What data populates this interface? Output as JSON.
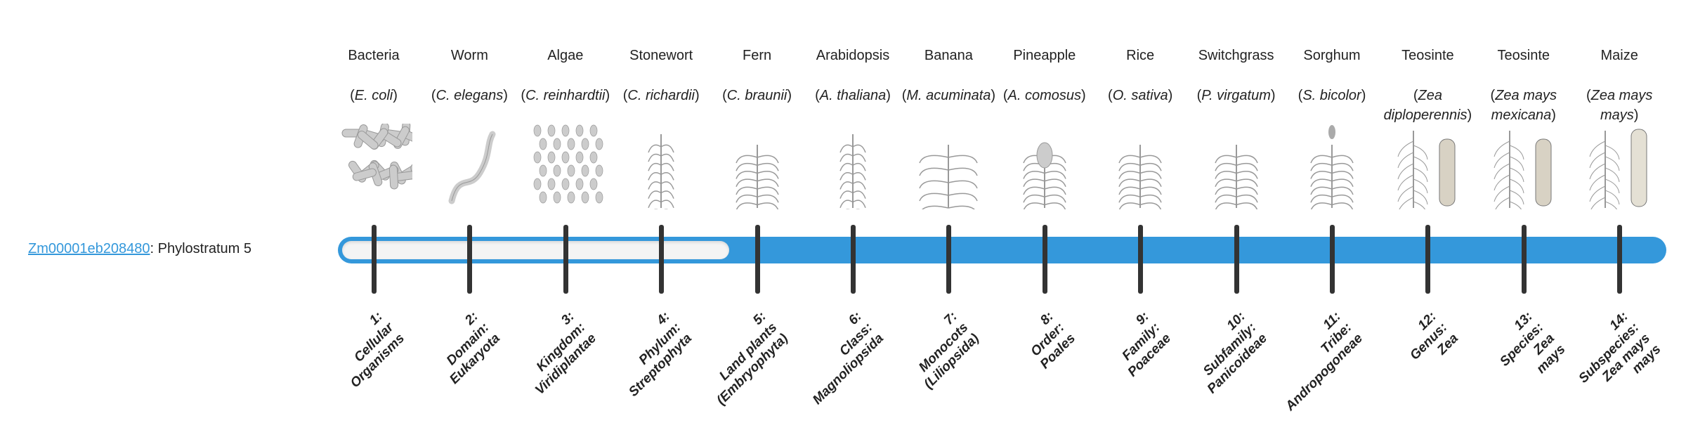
{
  "gene": {
    "id": "Zm00001eb208480",
    "separator": ":",
    "text": " Phylostratum 5",
    "phylostratum": 5
  },
  "colors": {
    "accent": "#3498db",
    "tick": "#333333",
    "empty": "#f4f4f4"
  },
  "organisms": [
    {
      "common": "Bacteria",
      "species": "E. coli",
      "icon": "bacteria",
      "label": [
        "1:",
        "Cellular",
        "Organisms"
      ]
    },
    {
      "common": "Worm",
      "species": "C. elegans",
      "icon": "worm",
      "label": [
        "2:",
        "Domain:",
        "Eukaryota"
      ]
    },
    {
      "common": "Algae",
      "species": "C. reinhardtii",
      "icon": "algae",
      "label": [
        "3:",
        "Kingdom:",
        "Viridiplantae"
      ]
    },
    {
      "common": "Stonewort",
      "species": "C. richardii",
      "icon": "stonewort",
      "label": [
        "4:",
        "Phylum:",
        "Streptophyta"
      ]
    },
    {
      "common": "Fern",
      "species": "C. braunii",
      "icon": "fern",
      "label": [
        "5:",
        "Land plants",
        "(Embryophyta)"
      ]
    },
    {
      "common": "Arabidopsis",
      "species": "A. thaliana",
      "icon": "arabidopsis",
      "label": [
        "6:",
        "Class:",
        "Magnoliopsida"
      ]
    },
    {
      "common": "Banana",
      "species": "M. acuminata",
      "icon": "banana",
      "label": [
        "7:",
        "Monocots",
        "(Liliopsida)"
      ]
    },
    {
      "common": "Pineapple",
      "species": "A. comosus",
      "icon": "pineapple",
      "label": [
        "8:",
        "Order:",
        "Poales"
      ]
    },
    {
      "common": "Rice",
      "species": "O. sativa",
      "icon": "rice",
      "label": [
        "9:",
        "Family:",
        "Poaceae"
      ]
    },
    {
      "common": "Switchgrass",
      "species": "P. virgatum",
      "icon": "switchgrass",
      "label": [
        "10:",
        "Subfamily:",
        "Panicoideae"
      ]
    },
    {
      "common": "Sorghum",
      "species": "S. bicolor",
      "icon": "sorghum",
      "label": [
        "11:",
        "Tribe:",
        "Andropogoneae"
      ]
    },
    {
      "common": "Teosinte",
      "species": "Zea diploperennis",
      "icon": "teosinte",
      "label": [
        "12:",
        "Genus:",
        "Zea"
      ]
    },
    {
      "common": "Teosinte",
      "species": "Zea mays mexicana",
      "icon": "teosinte",
      "label": [
        "13:",
        "Species:",
        "Zea",
        "mays"
      ]
    },
    {
      "common": "Maize",
      "species": "Zea mays mays",
      "icon": "maize",
      "label": [
        "14:",
        "Subspecies:",
        "Zea mays",
        "mays"
      ]
    }
  ]
}
